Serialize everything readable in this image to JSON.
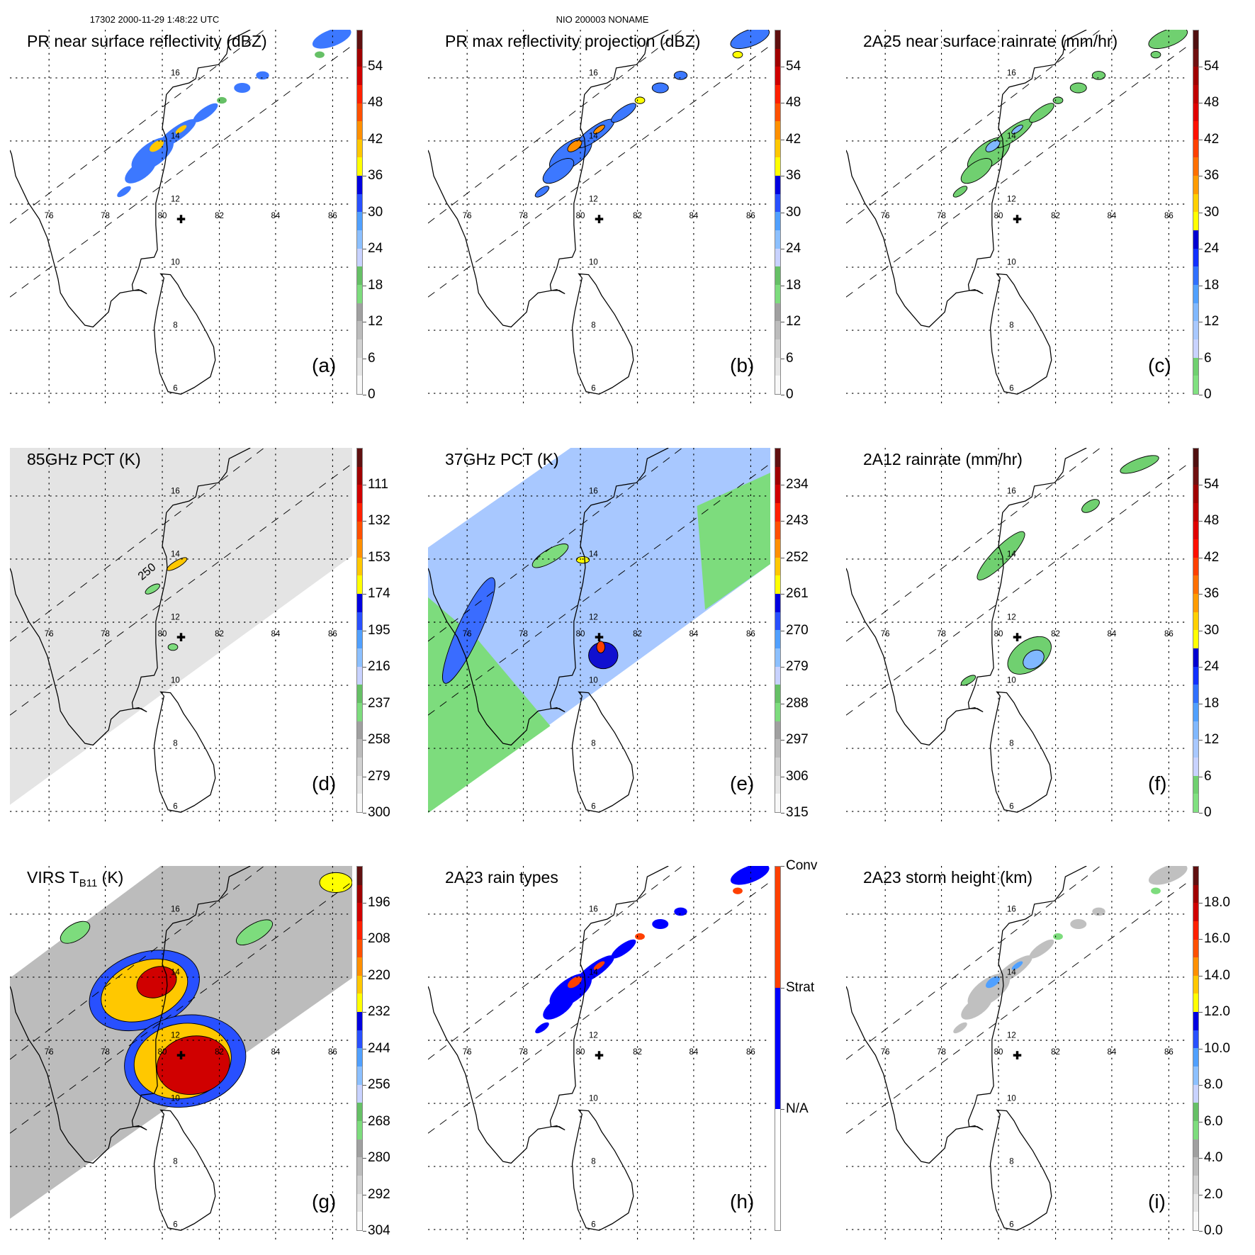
{
  "header": {
    "orbit_info": "17302 2000-11-29 1:48:22 UTC",
    "storm_info": "NIO 200003 NONAME"
  },
  "map_labels": {
    "lon": [
      "76",
      "78",
      "80",
      "82",
      "84",
      "86"
    ],
    "lat": [
      "16",
      "14",
      "12",
      "10",
      "8",
      "6"
    ]
  },
  "panels": [
    {
      "id": "a",
      "title": "PR near surface reflectivity (dBZ)",
      "letter": "(a)",
      "colorbar": {
        "min": 0,
        "max": 60,
        "reversed": false,
        "ticks": [
          "54",
          "48",
          "42",
          "36",
          "30",
          "24",
          "18",
          "12",
          "6",
          "0"
        ],
        "tick_values": [
          54,
          48,
          42,
          36,
          30,
          24,
          18,
          12,
          6,
          0
        ],
        "colors": [
          "#f8f8f8",
          "#e6e6e6",
          "#d2d2d2",
          "#bcbcbc",
          "#a0a0a0",
          "#7ddc7d",
          "#66c066",
          "#c8d2ff",
          "#8cc0ff",
          "#50a0ff",
          "#2850ff",
          "#0000e0",
          "#ffff00",
          "#ffc800",
          "#ff9000",
          "#ff5000",
          "#ff2000",
          "#d00000",
          "#a00000",
          "#601010"
        ]
      }
    },
    {
      "id": "b",
      "title": "PR max reflectivity projection (dBZ)",
      "letter": "(b)",
      "colorbar": {
        "min": 0,
        "max": 60,
        "reversed": false,
        "ticks": [
          "54",
          "48",
          "42",
          "36",
          "30",
          "24",
          "18",
          "12",
          "6",
          "0"
        ],
        "tick_values": [
          54,
          48,
          42,
          36,
          30,
          24,
          18,
          12,
          6,
          0
        ],
        "colors": [
          "#f8f8f8",
          "#e6e6e6",
          "#d2d2d2",
          "#bcbcbc",
          "#a0a0a0",
          "#7ddc7d",
          "#66c066",
          "#c8d2ff",
          "#8cc0ff",
          "#50a0ff",
          "#2850ff",
          "#0000e0",
          "#ffff00",
          "#ffc800",
          "#ff9000",
          "#ff5000",
          "#ff2000",
          "#d00000",
          "#a00000",
          "#601010"
        ]
      }
    },
    {
      "id": "c",
      "title": "2A25 near surface rainrate (mm/hr)",
      "letter": "(c)",
      "colorbar": {
        "min": 0,
        "max": 60,
        "reversed": false,
        "ticks": [
          "54",
          "48",
          "42",
          "36",
          "30",
          "24",
          "18",
          "12",
          "6",
          "0"
        ],
        "tick_values": [
          54,
          48,
          42,
          36,
          30,
          24,
          18,
          12,
          6,
          0
        ],
        "colors": [
          "#80e080",
          "#70d070",
          "#c8d2ff",
          "#a8c8ff",
          "#80b8ff",
          "#50a0ff",
          "#3070ff",
          "#1030ff",
          "#0000d0",
          "#ffff00",
          "#ffd000",
          "#ff9c00",
          "#ff7000",
          "#ff4000",
          "#ff1000",
          "#e00000",
          "#c00000",
          "#a00000",
          "#701010",
          "#501010"
        ]
      }
    },
    {
      "id": "d",
      "title": "85GHz PCT (K)",
      "letter": "(d)",
      "contour_label": "250",
      "colorbar": {
        "min": 90,
        "max": 300,
        "reversed": true,
        "ticks": [
          "111",
          "132",
          "153",
          "174",
          "195",
          "216",
          "237",
          "258",
          "279",
          "300"
        ],
        "tick_values": [
          111,
          132,
          153,
          174,
          195,
          216,
          237,
          258,
          279,
          300
        ],
        "colors": [
          "#f8f8f8",
          "#e6e6e6",
          "#d2d2d2",
          "#bcbcbc",
          "#a0a0a0",
          "#7ddc7d",
          "#66c066",
          "#c8d2ff",
          "#8cc0ff",
          "#50a0ff",
          "#2850ff",
          "#0000e0",
          "#ffff00",
          "#ffc800",
          "#ff9000",
          "#ff5000",
          "#ff2000",
          "#d00000",
          "#a00000",
          "#601010"
        ]
      }
    },
    {
      "id": "e",
      "title": "37GHz PCT (K)",
      "letter": "(e)",
      "colorbar": {
        "min": 225,
        "max": 315,
        "reversed": true,
        "ticks": [
          "234",
          "243",
          "252",
          "261",
          "270",
          "279",
          "288",
          "297",
          "306",
          "315"
        ],
        "tick_values": [
          234,
          243,
          252,
          261,
          270,
          279,
          288,
          297,
          306,
          315
        ],
        "colors": [
          "#f8f8f8",
          "#e6e6e6",
          "#d2d2d2",
          "#bcbcbc",
          "#a0a0a0",
          "#7ddc7d",
          "#66c066",
          "#c8d2ff",
          "#8cc0ff",
          "#50a0ff",
          "#2850ff",
          "#0000e0",
          "#ffff00",
          "#ffc800",
          "#ff9000",
          "#ff5000",
          "#ff2000",
          "#d00000",
          "#a00000",
          "#601010"
        ]
      }
    },
    {
      "id": "f",
      "title": "2A12 rainrate (mm/hr)",
      "letter": "(f)",
      "colorbar": {
        "min": 0,
        "max": 60,
        "reversed": false,
        "ticks": [
          "54",
          "48",
          "42",
          "36",
          "30",
          "24",
          "18",
          "12",
          "6",
          "0"
        ],
        "tick_values": [
          54,
          48,
          42,
          36,
          30,
          24,
          18,
          12,
          6,
          0
        ],
        "colors": [
          "#80e080",
          "#70d070",
          "#c8d2ff",
          "#a8c8ff",
          "#80b8ff",
          "#50a0ff",
          "#3070ff",
          "#1030ff",
          "#0000d0",
          "#ffff00",
          "#ffd000",
          "#ff9c00",
          "#ff7000",
          "#ff4000",
          "#ff1000",
          "#e00000",
          "#c00000",
          "#a00000",
          "#701010",
          "#501010"
        ]
      }
    },
    {
      "id": "g",
      "title": "VIRS T",
      "title_sub": "B11",
      "title_end": " (K)",
      "letter": "(g)",
      "colorbar": {
        "min": 184,
        "max": 304,
        "reversed": true,
        "ticks": [
          "196",
          "208",
          "220",
          "232",
          "244",
          "256",
          "268",
          "280",
          "292",
          "304"
        ],
        "tick_values": [
          196,
          208,
          220,
          232,
          244,
          256,
          268,
          280,
          292,
          304
        ],
        "colors": [
          "#f8f8f8",
          "#e6e6e6",
          "#d2d2d2",
          "#bcbcbc",
          "#a0a0a0",
          "#7ddc7d",
          "#66c066",
          "#c8d2ff",
          "#8cc0ff",
          "#50a0ff",
          "#2850ff",
          "#0000e0",
          "#ffff00",
          "#ffc800",
          "#ff9000",
          "#ff5000",
          "#ff2000",
          "#d00000",
          "#a00000",
          "#601010"
        ]
      }
    },
    {
      "id": "h",
      "title": "2A23 rain types",
      "letter": "(h)",
      "colorbar": {
        "min": 0,
        "max": 3,
        "reversed": false,
        "ticks": [
          "Conv",
          "Strat",
          "N/A"
        ],
        "tick_values": [
          3,
          2,
          1
        ],
        "colors": [
          "#ffffff",
          "#0000ff",
          "#ff4000"
        ]
      }
    },
    {
      "id": "i",
      "title": "2A23 storm height (km)",
      "letter": "(i)",
      "colorbar": {
        "min": 0,
        "max": 20,
        "reversed": false,
        "ticks": [
          "18.0",
          "16.0",
          "14.0",
          "12.0",
          "10.0",
          "8.0",
          "6.0",
          "4.0",
          "2.0",
          "0.0"
        ],
        "tick_values": [
          18,
          16,
          14,
          12,
          10,
          8,
          6,
          4,
          2,
          0
        ],
        "colors": [
          "#f8f8f8",
          "#e6e6e6",
          "#d2d2d2",
          "#bcbcbc",
          "#a0a0a0",
          "#7ddc7d",
          "#66c066",
          "#c8d2ff",
          "#8cc0ff",
          "#50a0ff",
          "#2850ff",
          "#0000e0",
          "#ffff00",
          "#ffc800",
          "#ff9000",
          "#ff5000",
          "#ff2000",
          "#d00000",
          "#a00000",
          "#601010"
        ]
      }
    }
  ]
}
